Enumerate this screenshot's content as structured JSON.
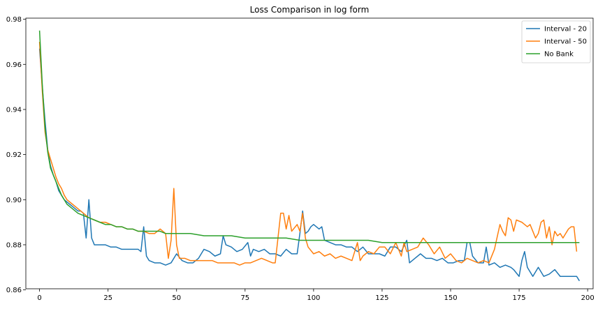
{
  "chart_data": {
    "type": "line",
    "title": "Loss Comparison in log form",
    "xlabel": "",
    "ylabel": "",
    "xlim": [
      -5,
      202
    ],
    "ylim": [
      0.8605,
      0.9805
    ],
    "x_ticks": [
      0,
      25,
      50,
      75,
      100,
      125,
      150,
      175,
      200
    ],
    "y_ticks": [
      0.86,
      0.88,
      0.9,
      0.92,
      0.94,
      0.96,
      0.98
    ],
    "y_tick_labels": [
      "0.86",
      "0.88",
      "0.90",
      "0.92",
      "0.94",
      "0.96",
      "0.98"
    ],
    "grid": false,
    "legend_position": "top-right",
    "series": [
      {
        "name": "Interval - 20",
        "color": "#1f77b4",
        "points": [
          [
            0,
            0.967
          ],
          [
            1,
            0.95
          ],
          [
            2,
            0.935
          ],
          [
            3,
            0.922
          ],
          [
            4,
            0.915
          ],
          [
            5,
            0.911
          ],
          [
            6,
            0.908
          ],
          [
            7,
            0.904
          ],
          [
            8,
            0.902
          ],
          [
            9,
            0.9
          ],
          [
            10,
            0.899
          ],
          [
            11,
            0.898
          ],
          [
            12,
            0.897
          ],
          [
            13,
            0.896
          ],
          [
            14,
            0.895
          ],
          [
            15,
            0.895
          ],
          [
            16,
            0.894
          ],
          [
            17,
            0.883
          ],
          [
            18,
            0.9
          ],
          [
            19,
            0.883
          ],
          [
            20,
            0.88
          ],
          [
            22,
            0.88
          ],
          [
            24,
            0.88
          ],
          [
            26,
            0.879
          ],
          [
            28,
            0.879
          ],
          [
            30,
            0.878
          ],
          [
            32,
            0.878
          ],
          [
            34,
            0.878
          ],
          [
            36,
            0.878
          ],
          [
            37,
            0.877
          ],
          [
            38,
            0.888
          ],
          [
            39,
            0.875
          ],
          [
            40,
            0.873
          ],
          [
            42,
            0.872
          ],
          [
            44,
            0.872
          ],
          [
            46,
            0.871
          ],
          [
            48,
            0.872
          ],
          [
            50,
            0.876
          ],
          [
            52,
            0.873
          ],
          [
            54,
            0.872
          ],
          [
            56,
            0.872
          ],
          [
            58,
            0.874
          ],
          [
            60,
            0.878
          ],
          [
            62,
            0.877
          ],
          [
            64,
            0.875
          ],
          [
            66,
            0.876
          ],
          [
            67,
            0.884
          ],
          [
            68,
            0.88
          ],
          [
            70,
            0.879
          ],
          [
            72,
            0.877
          ],
          [
            74,
            0.878
          ],
          [
            76,
            0.881
          ],
          [
            77,
            0.875
          ],
          [
            78,
            0.878
          ],
          [
            80,
            0.877
          ],
          [
            82,
            0.878
          ],
          [
            84,
            0.876
          ],
          [
            86,
            0.876
          ],
          [
            88,
            0.875
          ],
          [
            90,
            0.878
          ],
          [
            92,
            0.876
          ],
          [
            94,
            0.876
          ],
          [
            95,
            0.885
          ],
          [
            96,
            0.895
          ],
          [
            97,
            0.885
          ],
          [
            98,
            0.886
          ],
          [
            99,
            0.888
          ],
          [
            100,
            0.889
          ],
          [
            102,
            0.887
          ],
          [
            103,
            0.888
          ],
          [
            104,
            0.882
          ],
          [
            106,
            0.881
          ],
          [
            108,
            0.88
          ],
          [
            110,
            0.88
          ],
          [
            112,
            0.879
          ],
          [
            114,
            0.879
          ],
          [
            116,
            0.877
          ],
          [
            118,
            0.879
          ],
          [
            120,
            0.876
          ],
          [
            122,
            0.876
          ],
          [
            124,
            0.876
          ],
          [
            126,
            0.875
          ],
          [
            128,
            0.879
          ],
          [
            130,
            0.879
          ],
          [
            132,
            0.877
          ],
          [
            134,
            0.882
          ],
          [
            135,
            0.872
          ],
          [
            137,
            0.874
          ],
          [
            139,
            0.876
          ],
          [
            141,
            0.874
          ],
          [
            143,
            0.874
          ],
          [
            145,
            0.873
          ],
          [
            147,
            0.874
          ],
          [
            149,
            0.872
          ],
          [
            151,
            0.872
          ],
          [
            153,
            0.873
          ],
          [
            155,
            0.873
          ],
          [
            156,
            0.881
          ],
          [
            157,
            0.881
          ],
          [
            158,
            0.875
          ],
          [
            160,
            0.872
          ],
          [
            162,
            0.872
          ],
          [
            163,
            0.879
          ],
          [
            164,
            0.871
          ],
          [
            166,
            0.872
          ],
          [
            168,
            0.87
          ],
          [
            170,
            0.871
          ],
          [
            172,
            0.87
          ],
          [
            173,
            0.869
          ],
          [
            175,
            0.866
          ],
          [
            176,
            0.873
          ],
          [
            177,
            0.877
          ],
          [
            178,
            0.87
          ],
          [
            180,
            0.866
          ],
          [
            182,
            0.87
          ],
          [
            184,
            0.866
          ],
          [
            186,
            0.867
          ],
          [
            188,
            0.869
          ],
          [
            190,
            0.866
          ],
          [
            192,
            0.866
          ],
          [
            194,
            0.866
          ],
          [
            196,
            0.866
          ],
          [
            197,
            0.864
          ]
        ]
      },
      {
        "name": "Interval - 50",
        "color": "#ff7f0e",
        "points": [
          [
            0,
            0.97
          ],
          [
            1,
            0.948
          ],
          [
            2,
            0.93
          ],
          [
            3,
            0.922
          ],
          [
            4,
            0.918
          ],
          [
            5,
            0.914
          ],
          [
            6,
            0.91
          ],
          [
            7,
            0.907
          ],
          [
            8,
            0.905
          ],
          [
            9,
            0.902
          ],
          [
            10,
            0.9
          ],
          [
            12,
            0.898
          ],
          [
            14,
            0.896
          ],
          [
            16,
            0.894
          ],
          [
            18,
            0.892
          ],
          [
            20,
            0.891
          ],
          [
            22,
            0.89
          ],
          [
            24,
            0.89
          ],
          [
            26,
            0.889
          ],
          [
            28,
            0.888
          ],
          [
            30,
            0.888
          ],
          [
            32,
            0.887
          ],
          [
            34,
            0.887
          ],
          [
            36,
            0.886
          ],
          [
            38,
            0.886
          ],
          [
            40,
            0.885
          ],
          [
            42,
            0.885
          ],
          [
            44,
            0.887
          ],
          [
            46,
            0.885
          ],
          [
            47,
            0.874
          ],
          [
            48,
            0.882
          ],
          [
            49,
            0.905
          ],
          [
            50,
            0.88
          ],
          [
            51,
            0.874
          ],
          [
            53,
            0.874
          ],
          [
            55,
            0.873
          ],
          [
            57,
            0.873
          ],
          [
            59,
            0.873
          ],
          [
            61,
            0.873
          ],
          [
            63,
            0.873
          ],
          [
            65,
            0.872
          ],
          [
            67,
            0.872
          ],
          [
            69,
            0.872
          ],
          [
            71,
            0.872
          ],
          [
            73,
            0.871
          ],
          [
            75,
            0.872
          ],
          [
            77,
            0.872
          ],
          [
            79,
            0.873
          ],
          [
            81,
            0.874
          ],
          [
            83,
            0.873
          ],
          [
            85,
            0.872
          ],
          [
            86,
            0.872
          ],
          [
            87,
            0.883
          ],
          [
            88,
            0.894
          ],
          [
            89,
            0.894
          ],
          [
            90,
            0.887
          ],
          [
            91,
            0.893
          ],
          [
            92,
            0.886
          ],
          [
            94,
            0.889
          ],
          [
            95,
            0.886
          ],
          [
            96,
            0.894
          ],
          [
            97,
            0.883
          ],
          [
            98,
            0.879
          ],
          [
            100,
            0.876
          ],
          [
            102,
            0.877
          ],
          [
            104,
            0.875
          ],
          [
            106,
            0.876
          ],
          [
            108,
            0.874
          ],
          [
            110,
            0.875
          ],
          [
            112,
            0.874
          ],
          [
            114,
            0.873
          ],
          [
            116,
            0.881
          ],
          [
            117,
            0.873
          ],
          [
            118,
            0.875
          ],
          [
            120,
            0.877
          ],
          [
            122,
            0.876
          ],
          [
            124,
            0.879
          ],
          [
            126,
            0.879
          ],
          [
            128,
            0.876
          ],
          [
            130,
            0.881
          ],
          [
            132,
            0.875
          ],
          [
            133,
            0.881
          ],
          [
            134,
            0.877
          ],
          [
            136,
            0.878
          ],
          [
            138,
            0.879
          ],
          [
            140,
            0.883
          ],
          [
            142,
            0.88
          ],
          [
            144,
            0.876
          ],
          [
            146,
            0.879
          ],
          [
            148,
            0.874
          ],
          [
            150,
            0.876
          ],
          [
            152,
            0.873
          ],
          [
            154,
            0.872
          ],
          [
            156,
            0.874
          ],
          [
            158,
            0.873
          ],
          [
            160,
            0.872
          ],
          [
            162,
            0.873
          ],
          [
            164,
            0.872
          ],
          [
            166,
            0.878
          ],
          [
            168,
            0.889
          ],
          [
            169,
            0.886
          ],
          [
            170,
            0.884
          ],
          [
            171,
            0.892
          ],
          [
            172,
            0.891
          ],
          [
            173,
            0.886
          ],
          [
            174,
            0.891
          ],
          [
            176,
            0.89
          ],
          [
            177,
            0.889
          ],
          [
            178,
            0.888
          ],
          [
            179,
            0.889
          ],
          [
            180,
            0.886
          ],
          [
            181,
            0.883
          ],
          [
            182,
            0.885
          ],
          [
            183,
            0.89
          ],
          [
            184,
            0.891
          ],
          [
            185,
            0.883
          ],
          [
            186,
            0.888
          ],
          [
            187,
            0.88
          ],
          [
            188,
            0.886
          ],
          [
            189,
            0.884
          ],
          [
            190,
            0.885
          ],
          [
            191,
            0.883
          ],
          [
            192,
            0.885
          ],
          [
            193,
            0.887
          ],
          [
            194,
            0.888
          ],
          [
            195,
            0.888
          ],
          [
            196,
            0.877
          ]
        ]
      },
      {
        "name": "No Bank",
        "color": "#2ca02c",
        "points": [
          [
            0,
            0.975
          ],
          [
            1,
            0.951
          ],
          [
            2,
            0.932
          ],
          [
            3,
            0.921
          ],
          [
            4,
            0.914
          ],
          [
            5,
            0.911
          ],
          [
            6,
            0.908
          ],
          [
            7,
            0.905
          ],
          [
            8,
            0.902
          ],
          [
            9,
            0.9
          ],
          [
            10,
            0.898
          ],
          [
            12,
            0.896
          ],
          [
            14,
            0.894
          ],
          [
            16,
            0.893
          ],
          [
            18,
            0.892
          ],
          [
            20,
            0.891
          ],
          [
            22,
            0.89
          ],
          [
            24,
            0.889
          ],
          [
            26,
            0.889
          ],
          [
            28,
            0.888
          ],
          [
            30,
            0.888
          ],
          [
            32,
            0.887
          ],
          [
            34,
            0.887
          ],
          [
            36,
            0.886
          ],
          [
            38,
            0.886
          ],
          [
            40,
            0.886
          ],
          [
            42,
            0.886
          ],
          [
            44,
            0.886
          ],
          [
            46,
            0.885
          ],
          [
            48,
            0.885
          ],
          [
            50,
            0.885
          ],
          [
            55,
            0.885
          ],
          [
            60,
            0.884
          ],
          [
            65,
            0.884
          ],
          [
            70,
            0.884
          ],
          [
            75,
            0.883
          ],
          [
            80,
            0.883
          ],
          [
            85,
            0.883
          ],
          [
            90,
            0.883
          ],
          [
            95,
            0.882
          ],
          [
            100,
            0.882
          ],
          [
            105,
            0.882
          ],
          [
            110,
            0.882
          ],
          [
            115,
            0.882
          ],
          [
            120,
            0.882
          ],
          [
            125,
            0.881
          ],
          [
            130,
            0.881
          ],
          [
            135,
            0.881
          ],
          [
            140,
            0.881
          ],
          [
            145,
            0.881
          ],
          [
            150,
            0.881
          ],
          [
            155,
            0.881
          ],
          [
            160,
            0.881
          ],
          [
            165,
            0.881
          ],
          [
            170,
            0.881
          ],
          [
            175,
            0.881
          ],
          [
            180,
            0.881
          ],
          [
            185,
            0.881
          ],
          [
            190,
            0.881
          ],
          [
            195,
            0.881
          ],
          [
            197,
            0.881
          ]
        ]
      }
    ]
  }
}
